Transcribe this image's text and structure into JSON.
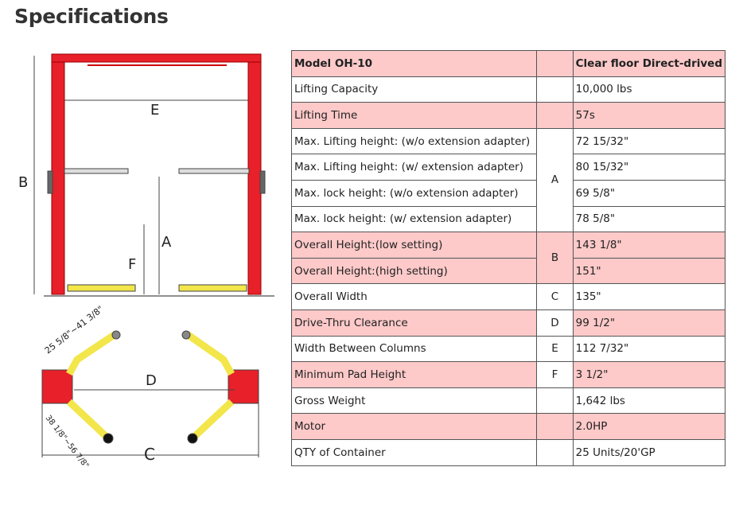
{
  "title": "Specifications",
  "diagram": {
    "labels": {
      "A": "A",
      "B": "B",
      "C": "C",
      "D": "D",
      "E": "E",
      "F": "F"
    },
    "arm_short": "25 5/8\"~41 3/8\"",
    "arm_long": "38 1/8\"~56 7/8\""
  },
  "colors": {
    "row_highlight": "#fdc9c9",
    "lift_red": "#e8202a",
    "arm_yellow": "#f2e64a"
  },
  "table": {
    "header": {
      "label": "Model OH-10",
      "code": "",
      "value": "Clear floor Direct-drived"
    },
    "rows": [
      {
        "label": "Lifting Capacity",
        "code": "",
        "value": "10,000 lbs"
      },
      {
        "label": "Lifting Time",
        "code": "",
        "value": "57s"
      },
      {
        "label": "Max. Lifting height: (w/o extension adapter)",
        "code": "A",
        "value": "72 15/32\""
      },
      {
        "label": "Max. Lifting height:  (w/ extension adapter)",
        "code": "A",
        "value": "80 15/32\""
      },
      {
        "label": "Max. lock height:  (w/o extension adapter)",
        "code": "A",
        "value": "69 5/8\""
      },
      {
        "label": "Max. lock height:  (w/ extension adapter)",
        "code": "A",
        "value": "78 5/8\""
      },
      {
        "label": "Overall Height:(low setting)",
        "code": "B",
        "value": "143 1/8\""
      },
      {
        "label": "Overall Height:(high setting)",
        "code": "B",
        "value": "151\""
      },
      {
        "label": "Overall Width",
        "code": "C",
        "value": "135\""
      },
      {
        "label": "Drive-Thru Clearance",
        "code": "D",
        "value": "99 1/2\""
      },
      {
        "label": "Width Between Columns",
        "code": "E",
        "value": "112 7/32\""
      },
      {
        "label": "Minimum Pad Height",
        "code": "F",
        "value": "3 1/2\""
      },
      {
        "label": "Gross Weight",
        "code": "",
        "value": "1,642 lbs"
      },
      {
        "label": "Motor",
        "code": "",
        "value": "2.0HP"
      },
      {
        "label": "QTY of Container",
        "code": "",
        "value": "25 Units/20'GP"
      }
    ]
  }
}
